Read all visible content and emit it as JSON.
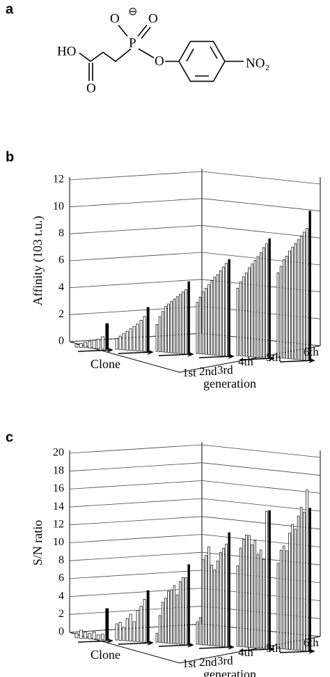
{
  "panels": [
    "a",
    "b",
    "c"
  ],
  "structure": {
    "atoms": [
      "HO",
      "O",
      "P",
      "O",
      "O",
      "⊖",
      "O",
      "NO₂"
    ]
  },
  "chart_data": [
    {
      "type": "bar3d",
      "ylabel": "Affinity (103 t.u.)",
      "xlabel": "Clone",
      "zlabel": "generation",
      "ylim": [
        0,
        12
      ],
      "yticks": [
        0,
        2,
        4,
        6,
        8,
        10,
        12
      ],
      "grid": true,
      "color": "#ffffff",
      "highlight_color": "#000000",
      "series": [
        {
          "name": "1st",
          "values": [
            0.2,
            0.3,
            0.4,
            0.5,
            0.6,
            0.7,
            0.9,
            1.9
          ]
        },
        {
          "name": "2nd",
          "values": [
            0.8,
            1.0,
            1.2,
            1.4,
            1.6,
            1.8,
            2.0,
            2.3,
            2.6,
            3.3
          ]
        },
        {
          "name": "3rd",
          "values": [
            2.0,
            2.6,
            3.0,
            3.4,
            3.6,
            3.8,
            4.0,
            4.2,
            4.4,
            4.6,
            4.8,
            5.4
          ]
        },
        {
          "name": "4th",
          "values": [
            3.8,
            4.2,
            4.6,
            4.9,
            5.2,
            5.5,
            5.8,
            6.0,
            6.3,
            6.6,
            6.9,
            7.2
          ]
        },
        {
          "name": "5th",
          "values": [
            5.0,
            5.5,
            5.9,
            6.2,
            6.6,
            6.9,
            7.2,
            7.5,
            7.8,
            8.2,
            8.5,
            8.9
          ]
        },
        {
          "name": "6th",
          "values": [
            6.3,
            6.8,
            7.3,
            7.6,
            8.0,
            8.3,
            8.6,
            8.9,
            9.2,
            9.5,
            9.8,
            11.1
          ]
        }
      ]
    },
    {
      "type": "bar3d",
      "ylabel": "S/N ratio",
      "xlabel": "Clone",
      "zlabel": "generation",
      "ylim": [
        0,
        20
      ],
      "yticks": [
        0,
        2,
        4,
        6,
        8,
        10,
        12,
        14,
        16,
        18,
        20
      ],
      "grid": true,
      "color": "#ffffff",
      "highlight_color": "#000000",
      "series": [
        {
          "name": "1st",
          "values": [
            0.5,
            0.9,
            0.7,
            0.6,
            0.8,
            0.5,
            0.6,
            3.5
          ]
        },
        {
          "name": "2nd",
          "values": [
            1.8,
            2.0,
            1.5,
            2.5,
            3.0,
            2.2,
            3.5,
            4.0,
            4.8,
            5.8
          ]
        },
        {
          "name": "3rd",
          "values": [
            1.0,
            3.0,
            4.5,
            5.0,
            5.8,
            6.0,
            6.5,
            5.5,
            7.0,
            7.5,
            7.5,
            9.0
          ]
        },
        {
          "name": "4th",
          "values": [
            2.5,
            3.0,
            9.5,
            10.0,
            11.0,
            9.0,
            8.5,
            9.5,
            10.5,
            11.0,
            11.5,
            12.8
          ]
        },
        {
          "name": "5th",
          "values": [
            9.0,
            11.0,
            12.0,
            12.5,
            12.5,
            11.5,
            12.0,
            10.5,
            11.0,
            10.0,
            15.4,
            15.5
          ]
        },
        {
          "name": "6th",
          "values": [
            9.5,
            11.0,
            11.5,
            11.0,
            13.0,
            14.0,
            13.5,
            15.0,
            16.0,
            15.5,
            18.0,
            16.0
          ]
        }
      ]
    }
  ]
}
